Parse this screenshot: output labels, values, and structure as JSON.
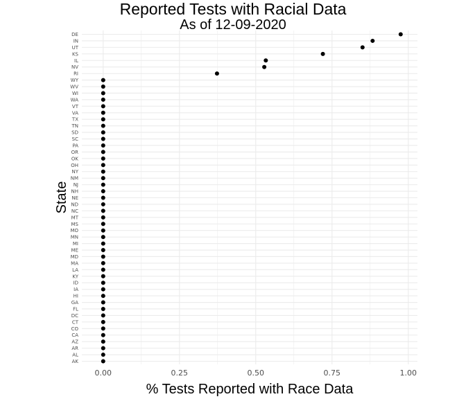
{
  "chart_data": {
    "type": "scatter",
    "title": "Reported Tests with Racial Data",
    "subtitle": "As of 12-09-2020",
    "xlabel": "% Tests Reported with Race Data",
    "ylabel": "State",
    "xlim": [
      -0.07,
      1.03
    ],
    "x_ticks": [
      0.0,
      0.25,
      0.5,
      0.75,
      1.0
    ],
    "x_tick_labels": [
      "0.00",
      "0.25",
      "0.50",
      "0.75",
      "1.00"
    ],
    "grid": true,
    "point_color": "#000000",
    "grid_color": "#ebebeb",
    "categories": [
      "DE",
      "IN",
      "UT",
      "KS",
      "IL",
      "NV",
      "RI",
      "WY",
      "WV",
      "WI",
      "WA",
      "VT",
      "VA",
      "TX",
      "TN",
      "SD",
      "SC",
      "PA",
      "OR",
      "OK",
      "OH",
      "NY",
      "NM",
      "NJ",
      "NH",
      "NE",
      "ND",
      "NC",
      "MT",
      "MS",
      "MO",
      "MN",
      "MI",
      "ME",
      "MD",
      "MA",
      "LA",
      "KY",
      "ID",
      "IA",
      "HI",
      "GA",
      "FL",
      "DC",
      "CT",
      "CO",
      "CA",
      "AZ",
      "AR",
      "AL",
      "AK"
    ],
    "values": [
      0.975,
      0.883,
      0.85,
      0.72,
      0.533,
      0.528,
      0.373,
      0,
      0,
      0,
      0,
      0,
      0,
      0,
      0,
      0,
      0,
      0,
      0,
      0,
      0,
      0,
      0,
      0,
      0,
      0,
      0,
      0,
      0,
      0,
      0,
      0,
      0,
      0,
      0,
      0,
      0,
      0,
      0,
      0,
      0,
      0,
      0,
      0,
      0,
      0,
      0,
      0,
      0,
      0,
      0
    ]
  }
}
